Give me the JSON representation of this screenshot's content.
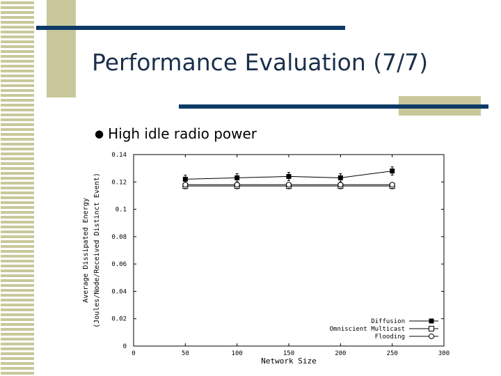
{
  "slide": {
    "title": "Performance Evaluation (7/7)",
    "bullet": "High idle radio power"
  },
  "colors": {
    "title": "#1a2f4a",
    "bar": "#0e3a66",
    "accent_block": "#c8c89b",
    "stripe": "#c8c89b"
  },
  "chart_data": {
    "type": "line",
    "xlabel": "Network Size",
    "ylabel": [
      "Average Dissipated Energy",
      "(Joules/Node/Received Distinct Event)"
    ],
    "xlim": [
      0,
      300
    ],
    "ylim": [
      0,
      0.14
    ],
    "xticks": [
      "0",
      "50",
      "100",
      "150",
      "200",
      "250",
      "300"
    ],
    "yticks": [
      "0",
      "0.02",
      "0.04",
      "0.06",
      "0.08",
      "0.1",
      "0.12",
      "0.14"
    ],
    "legend_position": "bottom-right",
    "series": [
      {
        "name": "Diffusion",
        "marker": "filled-square",
        "x": [
          50,
          100,
          150,
          200,
          250
        ],
        "y": [
          0.122,
          0.123,
          0.124,
          0.123,
          0.128
        ],
        "err": [
          0.003,
          0.003,
          0.003,
          0.003,
          0.003
        ]
      },
      {
        "name": "Omniscient Multicast",
        "marker": "open-square",
        "x": [
          50,
          100,
          150,
          200,
          250
        ],
        "y": [
          0.117,
          0.117,
          0.117,
          0.117,
          0.117
        ],
        "err": [
          0.002,
          0.002,
          0.002,
          0.002,
          0.002
        ]
      },
      {
        "name": "Flooding",
        "marker": "open-circle",
        "x": [
          50,
          100,
          150,
          200,
          250
        ],
        "y": [
          0.118,
          0.118,
          0.118,
          0.118,
          0.118
        ],
        "err": [
          0.001,
          0.001,
          0.001,
          0.001,
          0.001
        ]
      }
    ]
  }
}
